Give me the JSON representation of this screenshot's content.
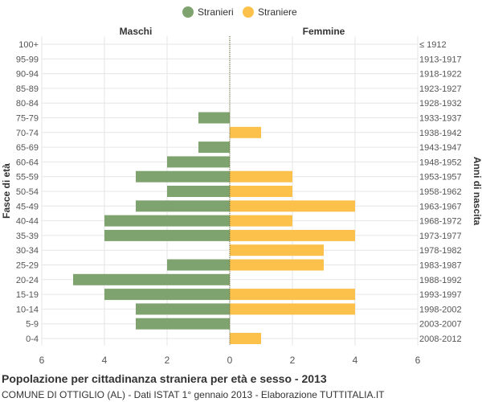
{
  "chart_data": {
    "type": "bar",
    "orientation": "horizontal",
    "layout": "population-pyramid",
    "title": "Popolazione per cittadinanza straniera per età e sesso - 2013",
    "subtitle": "COMUNE DI OTTIGLIO (AL) - Dati ISTAT 1° gennaio 2013 - Elaborazione TUTTITALIA.IT",
    "left_header": "Maschi",
    "right_header": "Femmine",
    "ylabel_left": "Fasce di età",
    "ylabel_right": "Anni di nascita",
    "xlim": [
      -6,
      6
    ],
    "x_ticks": [
      -6,
      -4,
      -2,
      0,
      2,
      4,
      6
    ],
    "x_tick_labels": [
      "6",
      "4",
      "2",
      "0",
      "2",
      "4",
      "6"
    ],
    "grid": true,
    "legend_position": "top-center",
    "categories": [
      "100+",
      "95-99",
      "90-94",
      "85-89",
      "80-84",
      "75-79",
      "70-74",
      "65-69",
      "60-64",
      "55-59",
      "50-54",
      "45-49",
      "40-44",
      "35-39",
      "30-34",
      "25-29",
      "20-24",
      "15-19",
      "10-14",
      "5-9",
      "0-4"
    ],
    "birth_years": [
      "≤ 1912",
      "1913-1917",
      "1918-1922",
      "1923-1927",
      "1928-1932",
      "1933-1937",
      "1938-1942",
      "1943-1947",
      "1948-1952",
      "1953-1957",
      "1958-1962",
      "1963-1967",
      "1968-1972",
      "1973-1977",
      "1978-1982",
      "1983-1987",
      "1988-1992",
      "1993-1997",
      "1998-2002",
      "2003-2007",
      "2008-2012"
    ],
    "series": [
      {
        "name": "Stranieri",
        "side": "left",
        "color": "#7fa36e",
        "values": [
          0,
          0,
          0,
          0,
          0,
          1,
          0,
          1,
          2,
          3,
          2,
          3,
          4,
          4,
          0,
          2,
          5,
          4,
          3,
          3,
          0
        ]
      },
      {
        "name": "Straniere",
        "side": "right",
        "color": "#fbc14b",
        "values": [
          0,
          0,
          0,
          0,
          0,
          0,
          1,
          0,
          0,
          2,
          2,
          4,
          2,
          4,
          3,
          3,
          0,
          4,
          4,
          0,
          1
        ]
      }
    ]
  },
  "colors": {
    "grid": "#e6e6e6",
    "axis_text": "#555555",
    "zero_line": "#6b6b3a"
  }
}
